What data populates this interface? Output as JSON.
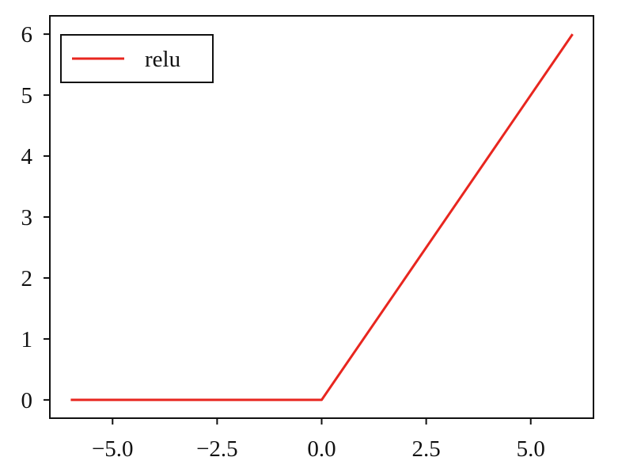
{
  "chart_data": {
    "type": "line",
    "title": "",
    "xlabel": "",
    "ylabel": "",
    "xlim": [
      -6.5,
      6.5
    ],
    "ylim": [
      -0.3,
      6.3
    ],
    "xticks": [
      -5.0,
      -2.5,
      0.0,
      2.5,
      5.0
    ],
    "xtick_labels": [
      "−5.0",
      "−2.5",
      "0.0",
      "2.5",
      "5.0"
    ],
    "yticks": [
      0,
      1,
      2,
      3,
      4,
      5,
      6
    ],
    "ytick_labels": [
      "0",
      "1",
      "2",
      "3",
      "4",
      "5",
      "6"
    ],
    "grid": false,
    "legend_position": "top-left",
    "series": [
      {
        "name": "relu",
        "color": "#e8261f",
        "x": [
          -6.0,
          0.0,
          6.0
        ],
        "y": [
          0.0,
          0.0,
          6.0
        ]
      }
    ]
  }
}
